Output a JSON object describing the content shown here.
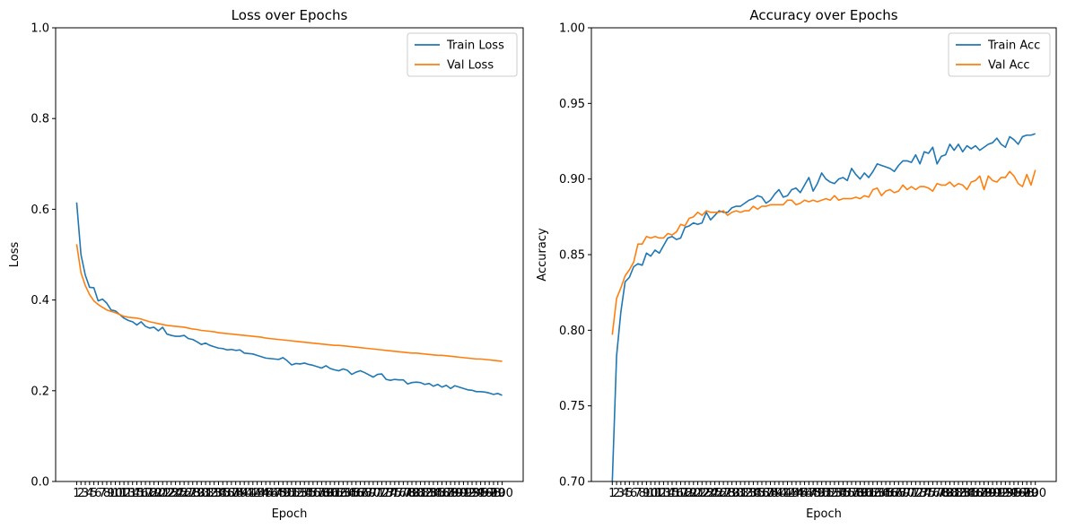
{
  "chart_data": [
    {
      "type": "line",
      "title": "Loss over Epochs",
      "xlabel": "Epoch",
      "ylabel": "Loss",
      "ylim": [
        0,
        1.0
      ],
      "yticks": [
        "0.0",
        "0.2",
        "0.4",
        "0.6",
        "0.8",
        "1.0"
      ],
      "legend": "top-right",
      "x": [
        1,
        2,
        3,
        4,
        5,
        6,
        7,
        8,
        9,
        10,
        11,
        12,
        13,
        14,
        15,
        16,
        17,
        18,
        19,
        20,
        21,
        22,
        23,
        24,
        25,
        26,
        27,
        28,
        29,
        30,
        31,
        32,
        33,
        34,
        35,
        36,
        37,
        38,
        39,
        40,
        41,
        42,
        43,
        44,
        45,
        46,
        47,
        48,
        49,
        50,
        51,
        52,
        53,
        54,
        55,
        56,
        57,
        58,
        59,
        60,
        61,
        62,
        63,
        64,
        65,
        66,
        67,
        68,
        69,
        70,
        71,
        72,
        73,
        74,
        75,
        76,
        77,
        78,
        79,
        80,
        81,
        82,
        83,
        84,
        85,
        86,
        87,
        88,
        89,
        90,
        91,
        92,
        93,
        94,
        95,
        96,
        97,
        98,
        99,
        100
      ],
      "series": [
        {
          "name": "Train Loss",
          "color": "#1f77b4",
          "values": [
            0.615,
            0.5,
            0.455,
            0.428,
            0.427,
            0.398,
            0.402,
            0.393,
            0.378,
            0.376,
            0.368,
            0.36,
            0.355,
            0.352,
            0.345,
            0.352,
            0.342,
            0.338,
            0.34,
            0.332,
            0.34,
            0.325,
            0.322,
            0.32,
            0.32,
            0.322,
            0.315,
            0.313,
            0.308,
            0.302,
            0.305,
            0.3,
            0.297,
            0.294,
            0.293,
            0.29,
            0.291,
            0.289,
            0.29,
            0.283,
            0.282,
            0.281,
            0.278,
            0.275,
            0.272,
            0.271,
            0.27,
            0.269,
            0.273,
            0.266,
            0.257,
            0.26,
            0.259,
            0.261,
            0.258,
            0.256,
            0.253,
            0.25,
            0.255,
            0.249,
            0.246,
            0.244,
            0.248,
            0.245,
            0.236,
            0.241,
            0.244,
            0.24,
            0.235,
            0.23,
            0.236,
            0.237,
            0.225,
            0.223,
            0.225,
            0.224,
            0.224,
            0.215,
            0.218,
            0.219,
            0.218,
            0.214,
            0.216,
            0.21,
            0.214,
            0.208,
            0.212,
            0.205,
            0.211,
            0.208,
            0.205,
            0.202,
            0.201,
            0.198,
            0.198,
            0.197,
            0.195,
            0.192,
            0.194,
            0.19
          ]
        },
        {
          "name": "Val Loss",
          "color": "#ff7f0e",
          "values": [
            0.523,
            0.46,
            0.432,
            0.412,
            0.398,
            0.39,
            0.384,
            0.378,
            0.375,
            0.372,
            0.368,
            0.364,
            0.362,
            0.361,
            0.36,
            0.358,
            0.355,
            0.352,
            0.35,
            0.348,
            0.346,
            0.344,
            0.343,
            0.342,
            0.341,
            0.34,
            0.338,
            0.336,
            0.335,
            0.333,
            0.332,
            0.331,
            0.33,
            0.328,
            0.327,
            0.326,
            0.325,
            0.324,
            0.323,
            0.322,
            0.321,
            0.32,
            0.319,
            0.318,
            0.316,
            0.315,
            0.314,
            0.313,
            0.312,
            0.311,
            0.31,
            0.309,
            0.308,
            0.307,
            0.306,
            0.305,
            0.304,
            0.303,
            0.302,
            0.301,
            0.3,
            0.3,
            0.299,
            0.298,
            0.297,
            0.296,
            0.295,
            0.294,
            0.293,
            0.292,
            0.291,
            0.29,
            0.289,
            0.288,
            0.287,
            0.286,
            0.285,
            0.284,
            0.283,
            0.283,
            0.282,
            0.281,
            0.28,
            0.279,
            0.278,
            0.278,
            0.277,
            0.276,
            0.275,
            0.274,
            0.273,
            0.272,
            0.271,
            0.27,
            0.27,
            0.269,
            0.268,
            0.267,
            0.266,
            0.265
          ]
        }
      ]
    },
    {
      "type": "line",
      "title": "Accuracy over Epochs",
      "xlabel": "Epoch",
      "ylabel": "Accuracy",
      "ylim": [
        0.7,
        1.0
      ],
      "yticks": [
        "0.70",
        "0.75",
        "0.80",
        "0.85",
        "0.90",
        "0.95",
        "1.00"
      ],
      "legend": "top-right",
      "x": [
        1,
        2,
        3,
        4,
        5,
        6,
        7,
        8,
        9,
        10,
        11,
        12,
        13,
        14,
        15,
        16,
        17,
        18,
        19,
        20,
        21,
        22,
        23,
        24,
        25,
        26,
        27,
        28,
        29,
        30,
        31,
        32,
        33,
        34,
        35,
        36,
        37,
        38,
        39,
        40,
        41,
        42,
        43,
        44,
        45,
        46,
        47,
        48,
        49,
        50,
        51,
        52,
        53,
        54,
        55,
        56,
        57,
        58,
        59,
        60,
        61,
        62,
        63,
        64,
        65,
        66,
        67,
        68,
        69,
        70,
        71,
        72,
        73,
        74,
        75,
        76,
        77,
        78,
        79,
        80,
        81,
        82,
        83,
        84,
        85,
        86,
        87,
        88,
        89,
        90,
        91,
        92,
        93,
        94,
        95,
        96,
        97,
        98,
        99,
        100
      ],
      "series": [
        {
          "name": "Train Acc",
          "color": "#1f77b4",
          "values": [
            0.7,
            0.783,
            0.812,
            0.832,
            0.835,
            0.842,
            0.844,
            0.843,
            0.851,
            0.849,
            0.853,
            0.851,
            0.856,
            0.861,
            0.862,
            0.86,
            0.861,
            0.868,
            0.869,
            0.871,
            0.87,
            0.871,
            0.878,
            0.873,
            0.876,
            0.879,
            0.878,
            0.878,
            0.881,
            0.882,
            0.882,
            0.884,
            0.886,
            0.887,
            0.889,
            0.888,
            0.884,
            0.886,
            0.89,
            0.893,
            0.888,
            0.889,
            0.893,
            0.894,
            0.891,
            0.896,
            0.901,
            0.892,
            0.897,
            0.904,
            0.9,
            0.898,
            0.897,
            0.9,
            0.901,
            0.899,
            0.907,
            0.903,
            0.9,
            0.904,
            0.901,
            0.905,
            0.91,
            0.909,
            0.908,
            0.907,
            0.905,
            0.909,
            0.912,
            0.912,
            0.911,
            0.916,
            0.91,
            0.918,
            0.917,
            0.921,
            0.91,
            0.915,
            0.916,
            0.923,
            0.919,
            0.923,
            0.918,
            0.922,
            0.92,
            0.922,
            0.919,
            0.921,
            0.923,
            0.924,
            0.927,
            0.923,
            0.921,
            0.928,
            0.926,
            0.923,
            0.928,
            0.929,
            0.929,
            0.93
          ]
        },
        {
          "name": "Val Acc",
          "color": "#ff7f0e",
          "values": [
            0.797,
            0.821,
            0.828,
            0.836,
            0.84,
            0.845,
            0.857,
            0.857,
            0.862,
            0.861,
            0.862,
            0.861,
            0.861,
            0.864,
            0.863,
            0.865,
            0.87,
            0.869,
            0.874,
            0.875,
            0.878,
            0.876,
            0.879,
            0.878,
            0.878,
            0.878,
            0.879,
            0.876,
            0.878,
            0.879,
            0.878,
            0.879,
            0.879,
            0.882,
            0.88,
            0.882,
            0.882,
            0.883,
            0.883,
            0.883,
            0.883,
            0.886,
            0.886,
            0.883,
            0.884,
            0.886,
            0.885,
            0.886,
            0.885,
            0.886,
            0.887,
            0.886,
            0.889,
            0.886,
            0.887,
            0.887,
            0.887,
            0.888,
            0.887,
            0.889,
            0.888,
            0.893,
            0.894,
            0.889,
            0.892,
            0.893,
            0.891,
            0.892,
            0.896,
            0.893,
            0.895,
            0.893,
            0.895,
            0.895,
            0.894,
            0.892,
            0.897,
            0.896,
            0.896,
            0.898,
            0.895,
            0.897,
            0.896,
            0.893,
            0.898,
            0.899,
            0.902,
            0.893,
            0.902,
            0.899,
            0.898,
            0.901,
            0.901,
            0.905,
            0.902,
            0.897,
            0.895,
            0.903,
            0.896,
            0.906
          ]
        }
      ]
    }
  ]
}
